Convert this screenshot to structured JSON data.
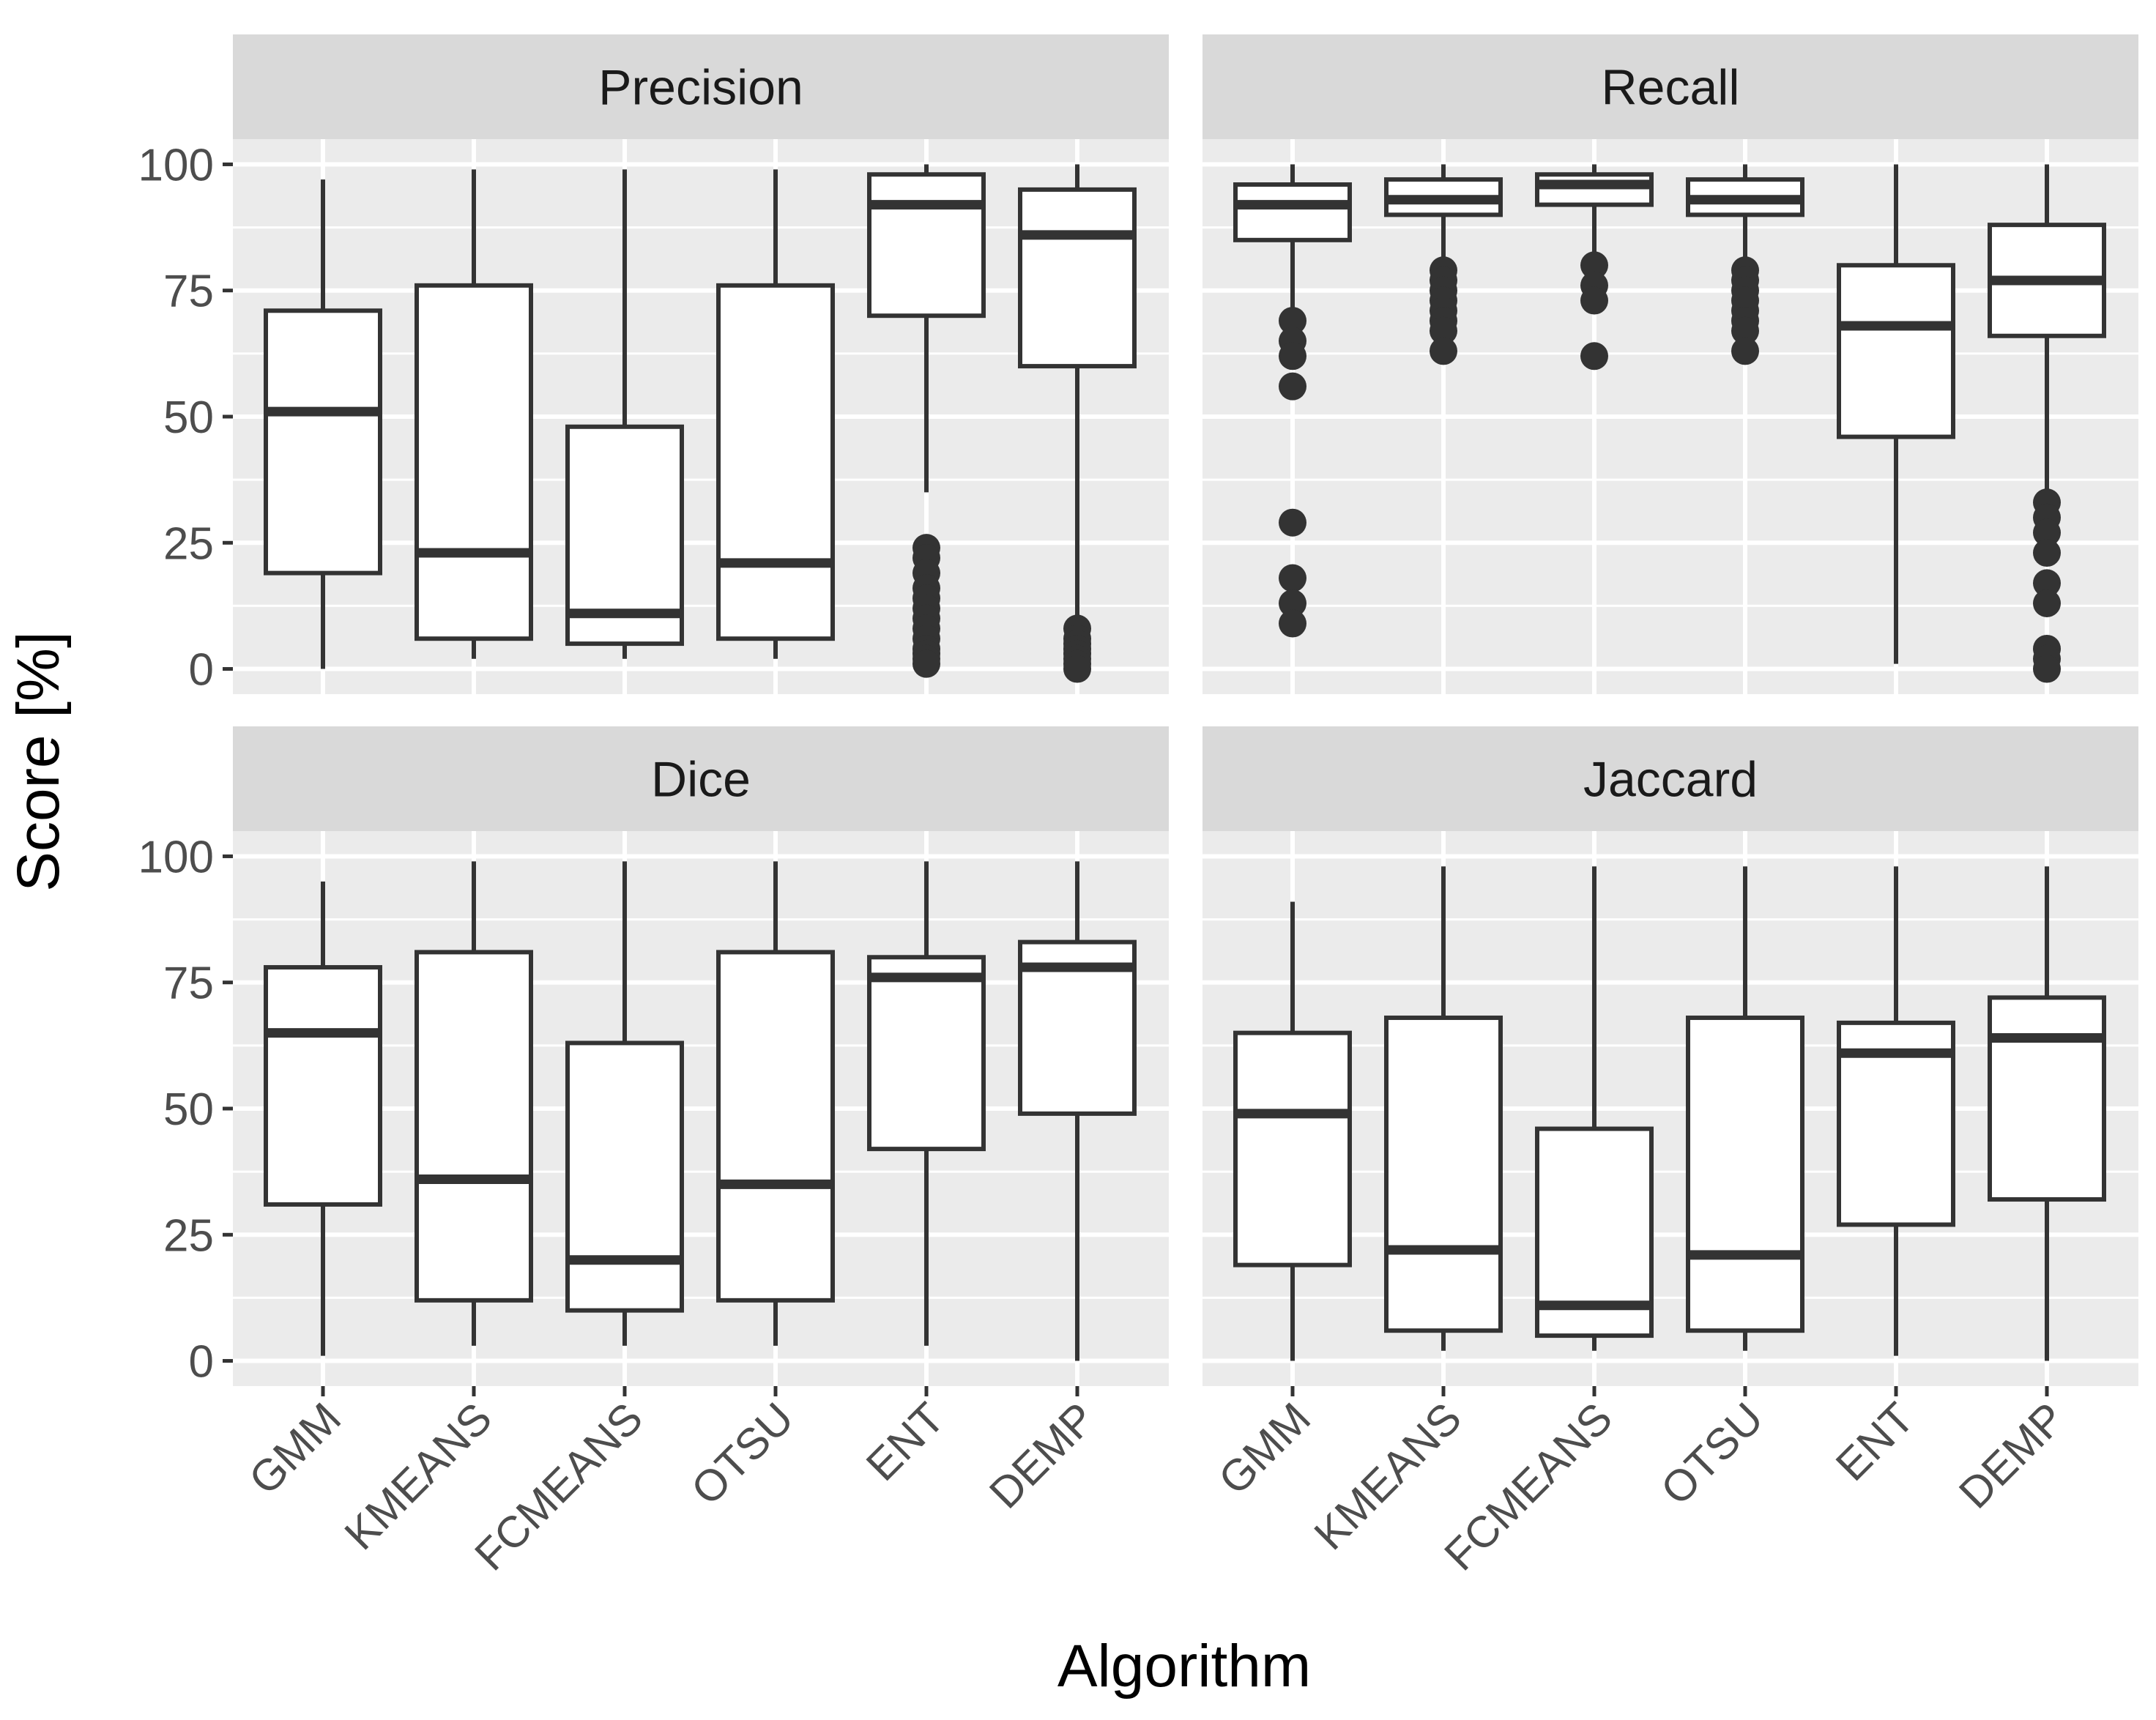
{
  "chart_data": {
    "type": "boxplot",
    "xlabel": "Algorithm",
    "ylabel": "Score [%]",
    "ylim": [
      -5,
      105
    ],
    "yticks": [
      0,
      25,
      50,
      75,
      100
    ],
    "ytick_labels": [
      "0",
      "25",
      "50",
      "75",
      "100"
    ],
    "categories": [
      "GMM",
      "KMEANS",
      "FCMEANS",
      "OTSU",
      "ENT",
      "DEMP"
    ],
    "colors": {
      "panel_bg": "#ebebeb",
      "strip_bg": "#d9d9d9",
      "grid": "#ffffff",
      "box_fill": "#ffffff",
      "box_line": "#333333",
      "text": "#1a1a1a",
      "tick_text": "#4d4d4d"
    },
    "panels": [
      {
        "title": "Precision",
        "boxes": [
          {
            "category": "GMM",
            "min": 0,
            "q1": 19,
            "median": 51,
            "q3": 71,
            "max": 97,
            "outliers": []
          },
          {
            "category": "KMEANS",
            "min": 2,
            "q1": 6,
            "median": 23,
            "q3": 76,
            "max": 99,
            "outliers": []
          },
          {
            "category": "FCMEANS",
            "min": 2,
            "q1": 5,
            "median": 11,
            "q3": 48,
            "max": 99,
            "outliers": []
          },
          {
            "category": "OTSU",
            "min": 2,
            "q1": 6,
            "median": 21,
            "q3": 76,
            "max": 99,
            "outliers": []
          },
          {
            "category": "ENT",
            "min": 35,
            "q1": 70,
            "median": 92,
            "q3": 98,
            "max": 100,
            "outliers": [
              24,
              22,
              19,
              16,
              14,
              12,
              10,
              8,
              6,
              4,
              3,
              2,
              1
            ]
          },
          {
            "category": "DEMP",
            "min": 9,
            "q1": 60,
            "median": 86,
            "q3": 95,
            "max": 100,
            "outliers": [
              8,
              6,
              5,
              4,
              3,
              2,
              1,
              0
            ]
          }
        ]
      },
      {
        "title": "Recall",
        "boxes": [
          {
            "category": "GMM",
            "min": 70,
            "q1": 85,
            "median": 92,
            "q3": 96,
            "max": 100,
            "outliers": [
              69,
              65,
              62,
              56,
              29,
              18,
              13,
              9
            ]
          },
          {
            "category": "KMEANS",
            "min": 81,
            "q1": 90,
            "median": 93,
            "q3": 97,
            "max": 100,
            "outliers": [
              79,
              77,
              75,
              73,
              71,
              69,
              67,
              63
            ]
          },
          {
            "category": "FCMEANS",
            "min": 82,
            "q1": 92,
            "median": 96,
            "q3": 98,
            "max": 100,
            "outliers": [
              80,
              76,
              73,
              62
            ]
          },
          {
            "category": "OTSU",
            "min": 81,
            "q1": 90,
            "median": 93,
            "q3": 97,
            "max": 100,
            "outliers": [
              79,
              77,
              75,
              73,
              71,
              69,
              67,
              63
            ]
          },
          {
            "category": "ENT",
            "min": 1,
            "q1": 46,
            "median": 68,
            "q3": 80,
            "max": 100,
            "outliers": []
          },
          {
            "category": "DEMP",
            "min": 34,
            "q1": 66,
            "median": 77,
            "q3": 88,
            "max": 100,
            "outliers": [
              33,
              30,
              27,
              23,
              17,
              13,
              4,
              2,
              0
            ]
          }
        ]
      },
      {
        "title": "Dice",
        "boxes": [
          {
            "category": "GMM",
            "min": 1,
            "q1": 31,
            "median": 65,
            "q3": 78,
            "max": 95,
            "outliers": []
          },
          {
            "category": "KMEANS",
            "min": 3,
            "q1": 12,
            "median": 36,
            "q3": 81,
            "max": 99,
            "outliers": []
          },
          {
            "category": "FCMEANS",
            "min": 3,
            "q1": 10,
            "median": 20,
            "q3": 63,
            "max": 99,
            "outliers": []
          },
          {
            "category": "OTSU",
            "min": 3,
            "q1": 12,
            "median": 35,
            "q3": 81,
            "max": 99,
            "outliers": []
          },
          {
            "category": "ENT",
            "min": 3,
            "q1": 42,
            "median": 76,
            "q3": 80,
            "max": 99,
            "outliers": []
          },
          {
            "category": "DEMP",
            "min": 0,
            "q1": 49,
            "median": 78,
            "q3": 83,
            "max": 99,
            "outliers": []
          }
        ]
      },
      {
        "title": "Jaccard",
        "boxes": [
          {
            "category": "GMM",
            "min": 0,
            "q1": 19,
            "median": 49,
            "q3": 65,
            "max": 91,
            "outliers": []
          },
          {
            "category": "KMEANS",
            "min": 2,
            "q1": 6,
            "median": 22,
            "q3": 68,
            "max": 98,
            "outliers": []
          },
          {
            "category": "FCMEANS",
            "min": 2,
            "q1": 5,
            "median": 11,
            "q3": 46,
            "max": 98,
            "outliers": []
          },
          {
            "category": "OTSU",
            "min": 2,
            "q1": 6,
            "median": 21,
            "q3": 68,
            "max": 98,
            "outliers": []
          },
          {
            "category": "ENT",
            "min": 1,
            "q1": 27,
            "median": 61,
            "q3": 67,
            "max": 98,
            "outliers": []
          },
          {
            "category": "DEMP",
            "min": 0,
            "q1": 32,
            "median": 64,
            "q3": 72,
            "max": 98,
            "outliers": []
          }
        ]
      }
    ]
  }
}
